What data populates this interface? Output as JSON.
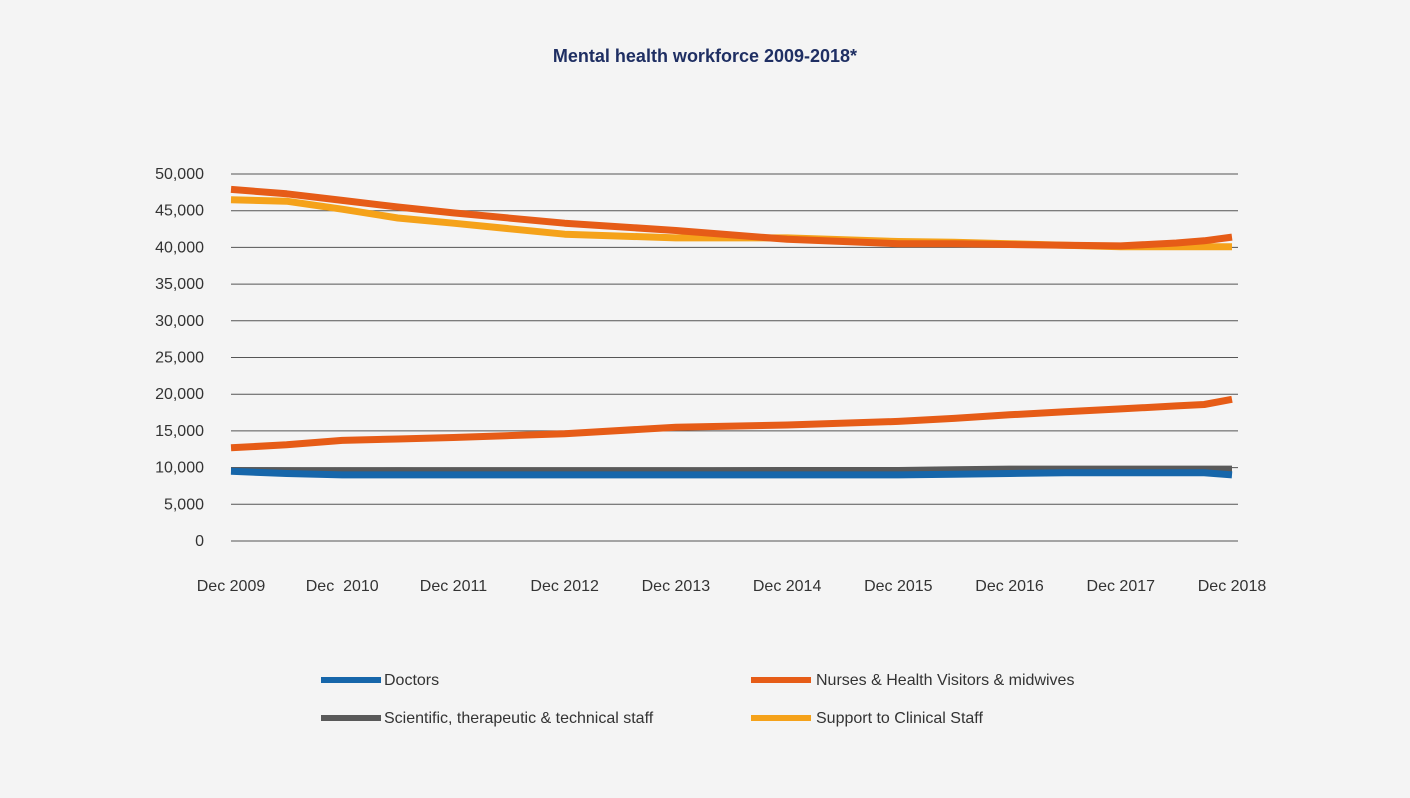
{
  "colors": {
    "background": "#f4f4f4",
    "title": "#1f2f63",
    "grid": "#555555",
    "text": "#333333"
  },
  "chart_data": {
    "type": "line",
    "title": "Mental health workforce 2009-2018*",
    "xlabel": "",
    "ylabel": "",
    "categories": [
      "Dec 2009",
      "Dec  2010",
      "Dec 2011",
      "Dec 2012",
      "Dec 2013",
      "Dec 2014",
      "Dec 2015",
      "Dec 2016",
      "Dec 2017",
      "Dec 2018"
    ],
    "y_ticks": [
      "0",
      "5,000",
      "10,000",
      "15,000",
      "20,000",
      "25,000",
      "30,000",
      "35,000",
      "40,000",
      "45,000",
      "50,000"
    ],
    "ylim": [
      0,
      50000
    ],
    "grid": true,
    "legend_position": "bottom",
    "series": [
      {
        "name": "Scientific, therapeutic & technical staff",
        "color": "#595959",
        "x": [
          0,
          0.5,
          1,
          1.5,
          2,
          3,
          4,
          5,
          6,
          6.5,
          7,
          7.5,
          8,
          8.5,
          8.75,
          9
        ],
        "values": [
          9600,
          9550,
          9500,
          9550,
          9500,
          9500,
          9500,
          9600,
          9600,
          9700,
          9800,
          9800,
          9800,
          9800,
          9800,
          9800
        ]
      },
      {
        "name": "Nurses & Health Visitors & midwives",
        "color": "#e65c17",
        "x": [
          0,
          0.5,
          1,
          1.5,
          2,
          3,
          4,
          5,
          6,
          6.5,
          7,
          7.5,
          8,
          8.5,
          8.75,
          9
        ],
        "values": [
          12700,
          13100,
          13700,
          13900,
          14100,
          14600,
          15500,
          15800,
          16300,
          16700,
          17200,
          17600,
          18000,
          18400,
          18600,
          19300
        ]
      },
      {
        "name": "Doctors",
        "color": "#1666aa",
        "x": [
          0,
          0.5,
          1,
          1.5,
          2,
          3,
          4,
          5,
          6,
          6.5,
          7,
          7.5,
          8,
          8.5,
          8.75,
          9
        ],
        "values": [
          9500,
          9200,
          9000,
          9000,
          9000,
          9000,
          9000,
          9000,
          9000,
          9100,
          9200,
          9300,
          9300,
          9300,
          9300,
          9000
        ]
      },
      {
        "name": "Support to Clinical Staff",
        "color": "#f5a21a",
        "x": [
          0,
          0.5,
          1,
          1.5,
          2,
          3,
          4,
          5,
          6,
          6.5,
          7,
          7.5,
          8,
          8.5,
          8.75,
          9
        ],
        "values": [
          46500,
          46300,
          45200,
          44000,
          43300,
          41800,
          41300,
          41300,
          40800,
          40700,
          40500,
          40300,
          40100,
          40100,
          40100,
          40100
        ]
      },
      {
        "name": "Nurses & Health Visitors & midwives",
        "color": "#e65c17",
        "x": [
          0,
          0.5,
          1,
          1.5,
          2,
          3,
          4,
          5,
          6,
          6.5,
          7,
          7.5,
          8,
          8.5,
          8.75,
          9
        ],
        "values": [
          47900,
          47300,
          46400,
          45500,
          44700,
          43300,
          42300,
          41100,
          40500,
          40500,
          40400,
          40300,
          40200,
          40600,
          40900,
          41400
        ]
      }
    ],
    "legend": [
      {
        "label": "Doctors",
        "color": "#1666aa"
      },
      {
        "label": "Nurses & Health Visitors & midwives",
        "color": "#e65c17"
      },
      {
        "label": "Scientific, therapeutic & technical staff",
        "color": "#595959"
      },
      {
        "label": "Support to Clinical Staff",
        "color": "#f5a21a"
      }
    ]
  }
}
